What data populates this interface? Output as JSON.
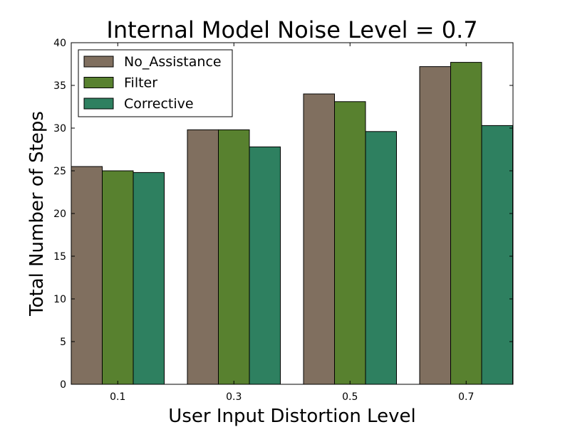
{
  "chart_data": {
    "type": "bar",
    "title": "Internal Model Noise Level = 0.7",
    "xlabel": "User Input Distortion Level",
    "ylabel": "Total Number of Steps",
    "categories": [
      "0.1",
      "0.3",
      "0.5",
      "0.7"
    ],
    "ylim": [
      0,
      40
    ],
    "yticks": [
      "0",
      "5",
      "10",
      "15",
      "20",
      "25",
      "30",
      "35",
      "40"
    ],
    "grid": false,
    "legend_position": "top-left",
    "series": [
      {
        "name": "No_Assistance",
        "color": "#806f5f",
        "values": [
          25.5,
          29.8,
          34.0,
          37.2
        ]
      },
      {
        "name": "Filter",
        "color": "#58812f",
        "values": [
          25.0,
          29.8,
          33.1,
          37.7
        ]
      },
      {
        "name": "Corrective",
        "color": "#2e8060",
        "values": [
          24.8,
          27.8,
          29.6,
          30.3
        ]
      }
    ]
  }
}
